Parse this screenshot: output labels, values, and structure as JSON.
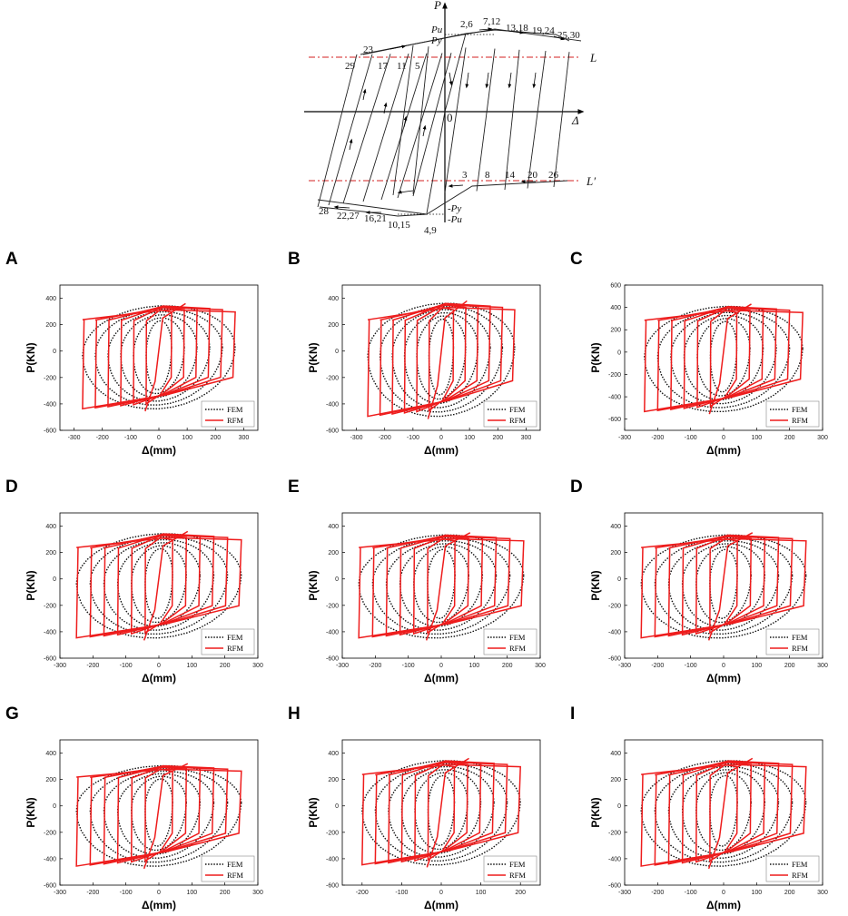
{
  "diagram": {
    "axis_p": "P",
    "axis_delta": "Δ",
    "origin": "0",
    "line_l": "L",
    "line_l_prime": "L′",
    "pu": "Pu",
    "py": "Py",
    "neg_py": "-Py",
    "neg_pu": "-Pu",
    "points_top": [
      "2,6",
      "7,12",
      "13,18",
      "19,24",
      "25,30"
    ],
    "points_l": [
      "23",
      "29",
      "17",
      "11",
      "5"
    ],
    "points_lprime": [
      "3",
      "8",
      "14",
      "20",
      "26"
    ],
    "points_bottom": [
      "28",
      "22,27",
      "16,21",
      "10,15",
      "4,9"
    ]
  },
  "chart_data": [
    {
      "type": "line",
      "panel": "A",
      "xlabel": "Δ(mm)",
      "ylabel": "P(KN)",
      "xlim": [
        -350,
        350
      ],
      "ylim": [
        -600,
        500
      ],
      "xticks": [
        -300,
        -200,
        -100,
        0,
        100,
        200,
        300
      ],
      "yticks": [
        -600,
        -400,
        -200,
        0,
        200,
        400
      ],
      "legend": [
        "FEM",
        "RFM"
      ],
      "d_max": 270,
      "P_pos": 360,
      "P_neg": -460,
      "P_yield": 250
    },
    {
      "type": "line",
      "panel": "B",
      "xlabel": "Δ(mm)",
      "ylabel": "P(KN)",
      "xlim": [
        -350,
        350
      ],
      "ylim": [
        -600,
        500
      ],
      "xticks": [
        -300,
        -200,
        -100,
        0,
        100,
        200,
        300
      ],
      "yticks": [
        -600,
        -400,
        -200,
        0,
        200,
        400
      ],
      "legend": [
        "FEM",
        "RFM"
      ],
      "d_max": 260,
      "P_pos": 380,
      "P_neg": -520,
      "P_yield": 250
    },
    {
      "type": "line",
      "panel": "C",
      "xlabel": "Δ(mm)",
      "ylabel": "P(KN)",
      "xlim": [
        -300,
        300
      ],
      "ylim": [
        -700,
        600
      ],
      "xticks": [
        -300,
        -200,
        -100,
        0,
        100,
        200,
        300
      ],
      "yticks": [
        -600,
        -400,
        -200,
        0,
        200,
        400,
        600
      ],
      "legend": [
        "FEM",
        "RFM"
      ],
      "d_max": 240,
      "P_pos": 430,
      "P_neg": -560,
      "P_yield": 300
    },
    {
      "type": "line",
      "panel": "D",
      "xlabel": "Δ(mm)",
      "ylabel": "P(KN)",
      "xlim": [
        -300,
        300
      ],
      "ylim": [
        -600,
        500
      ],
      "xticks": [
        -300,
        -200,
        -100,
        0,
        100,
        200,
        300
      ],
      "yticks": [
        -600,
        -400,
        -200,
        0,
        200,
        400
      ],
      "legend": [
        "FEM",
        "RFM"
      ],
      "d_max": 250,
      "P_pos": 360,
      "P_neg": -470,
      "P_yield": 250
    },
    {
      "type": "line",
      "panel": "E",
      "xlabel": "Δ(mm)",
      "ylabel": "P(KN)",
      "xlim": [
        -300,
        300
      ],
      "ylim": [
        -600,
        500
      ],
      "xticks": [
        -300,
        -200,
        -100,
        0,
        100,
        200,
        300
      ],
      "yticks": [
        -600,
        -400,
        -200,
        0,
        200,
        400
      ],
      "legend": [
        "FEM",
        "RFM"
      ],
      "d_max": 250,
      "P_pos": 350,
      "P_neg": -470,
      "P_yield": 250
    },
    {
      "type": "line",
      "panel": "D",
      "xlabel": "Δ(mm)",
      "ylabel": "P(KN)",
      "xlim": [
        -300,
        300
      ],
      "ylim": [
        -600,
        500
      ],
      "xticks": [
        -300,
        -200,
        -100,
        0,
        100,
        200,
        300
      ],
      "yticks": [
        -600,
        -400,
        -200,
        0,
        200,
        400
      ],
      "legend": [
        "FEM",
        "RFM"
      ],
      "d_max": 250,
      "P_pos": 350,
      "P_neg": -470,
      "P_yield": 250
    },
    {
      "type": "line",
      "panel": "G",
      "xlabel": "Δ(mm)",
      "ylabel": "P(KN)",
      "xlim": [
        -300,
        300
      ],
      "ylim": [
        -600,
        500
      ],
      "xticks": [
        -300,
        -200,
        -100,
        0,
        100,
        200,
        300
      ],
      "yticks": [
        -600,
        -400,
        -200,
        0,
        200,
        400
      ],
      "legend": [
        "FEM",
        "RFM"
      ],
      "d_max": 250,
      "P_pos": 320,
      "P_neg": -480,
      "P_yield": 230
    },
    {
      "type": "line",
      "panel": "H",
      "xlabel": "Δ(mm)",
      "ylabel": "P(KN)",
      "xlim": [
        -250,
        250
      ],
      "ylim": [
        -600,
        500
      ],
      "xticks": [
        -200,
        -100,
        0,
        100,
        200
      ],
      "yticks": [
        -600,
        -400,
        -200,
        0,
        200,
        400
      ],
      "legend": [
        "FEM",
        "RFM"
      ],
      "d_max": 200,
      "P_pos": 360,
      "P_neg": -470,
      "P_yield": 250
    },
    {
      "type": "line",
      "panel": "I",
      "xlabel": "Δ(mm)",
      "ylabel": "P(KN)",
      "xlim": [
        -300,
        300
      ],
      "ylim": [
        -600,
        500
      ],
      "xticks": [
        -300,
        -200,
        -100,
        0,
        100,
        200,
        300
      ],
      "yticks": [
        -600,
        -400,
        -200,
        0,
        200,
        400
      ],
      "legend": [
        "FEM",
        "RFM"
      ],
      "d_max": 250,
      "P_pos": 360,
      "P_neg": -480,
      "P_yield": 250
    }
  ],
  "colors": {
    "rfm": "#ee1c1c",
    "fem": "#111111",
    "redline": "#d32020"
  }
}
